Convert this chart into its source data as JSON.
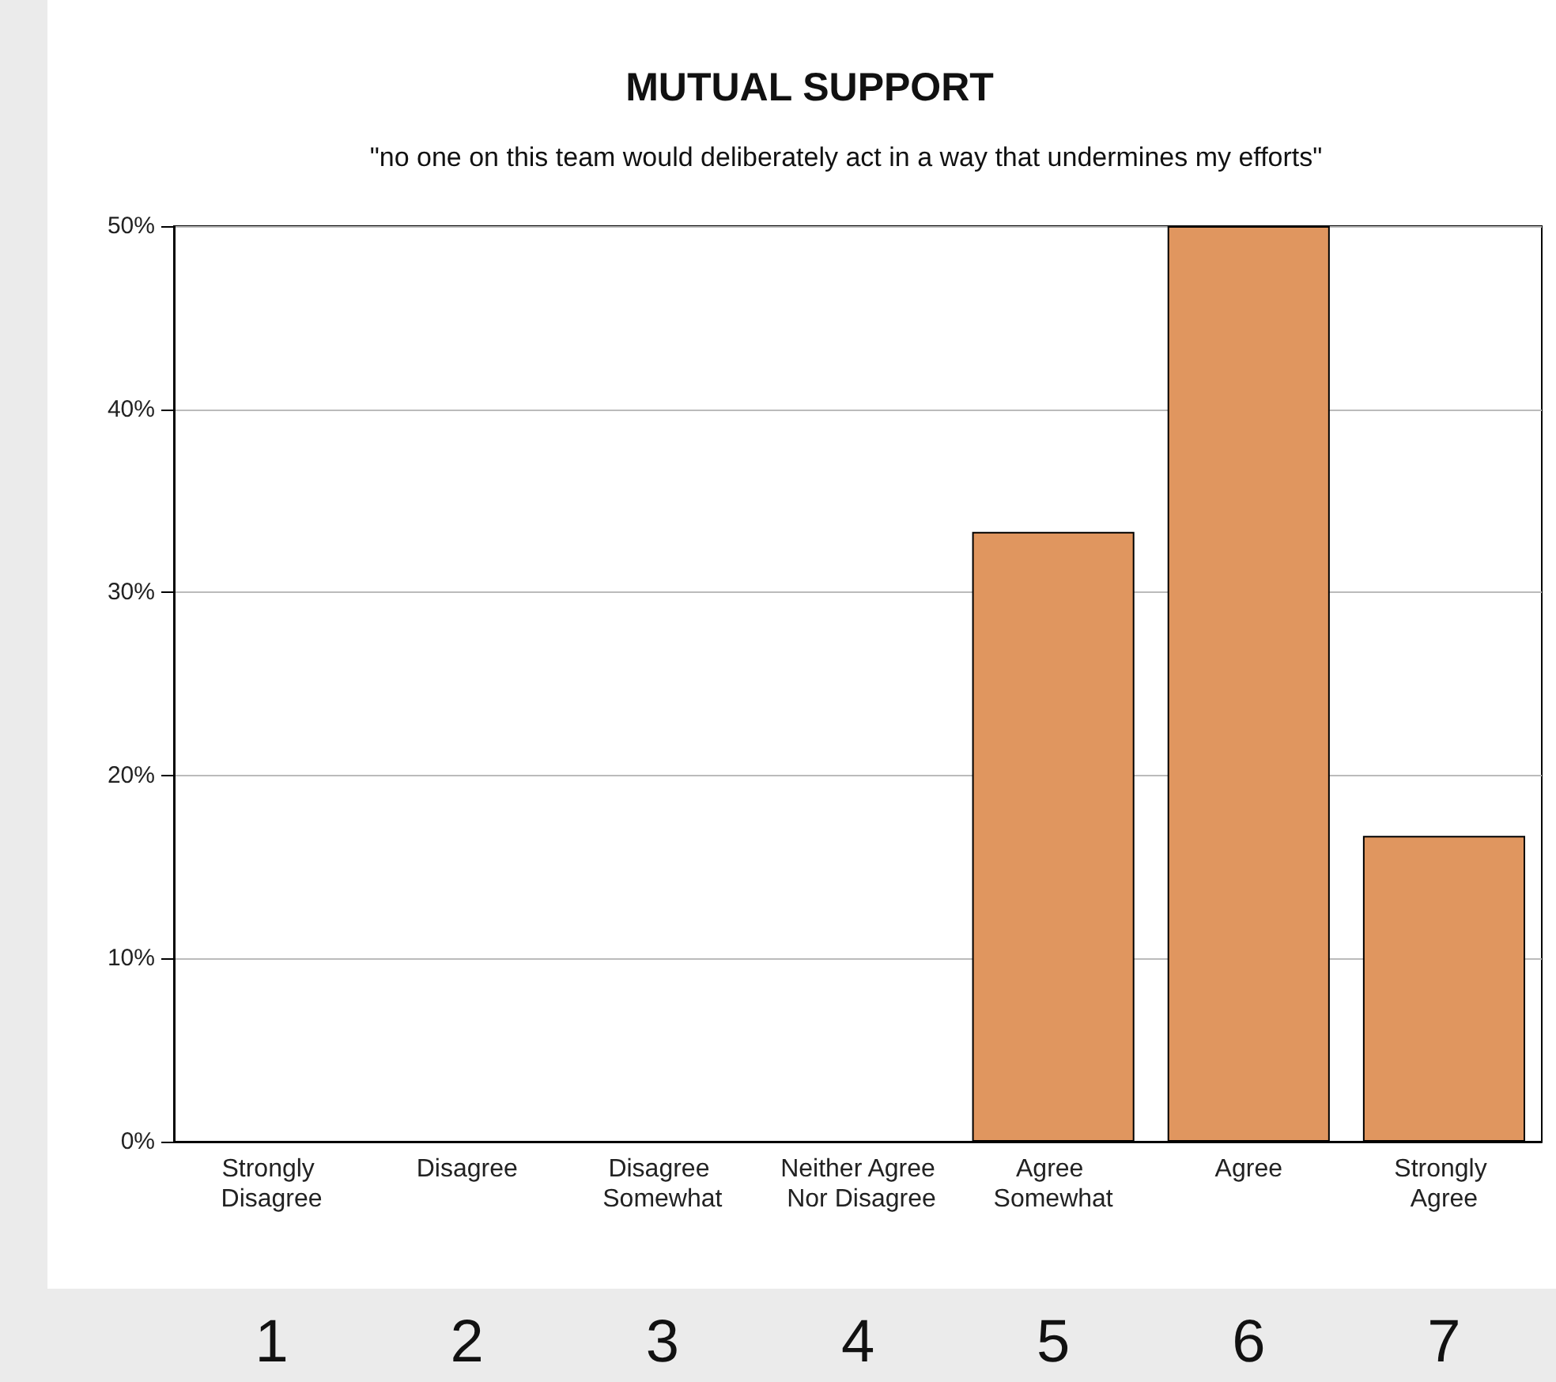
{
  "chart_data": {
    "type": "bar",
    "title": "MUTUAL SUPPORT",
    "subtitle": "\"no one on this team would deliberately act in a way that undermines my efforts\"",
    "categories": [
      "Strongly Disagree",
      "Disagree",
      "Disagree Somewhat",
      "Neither Agree Nor Disagree",
      "Agree Somewhat",
      "Agree",
      "Strongly Agree"
    ],
    "values": [
      0,
      0,
      0,
      0,
      33.3,
      50,
      16.7
    ],
    "color": "#e0965f",
    "ylim": [
      0,
      50
    ],
    "yticks": [
      {
        "value": 0,
        "label": "0%"
      },
      {
        "value": 10,
        "label": "10%"
      },
      {
        "value": 20,
        "label": "20%"
      },
      {
        "value": 30,
        "label": "30%"
      },
      {
        "value": 40,
        "label": "40%"
      },
      {
        "value": 50,
        "label": "50%"
      }
    ],
    "grid": "y",
    "annotations": [
      "1",
      "2",
      "3",
      "4",
      "5",
      "6",
      "7"
    ]
  }
}
